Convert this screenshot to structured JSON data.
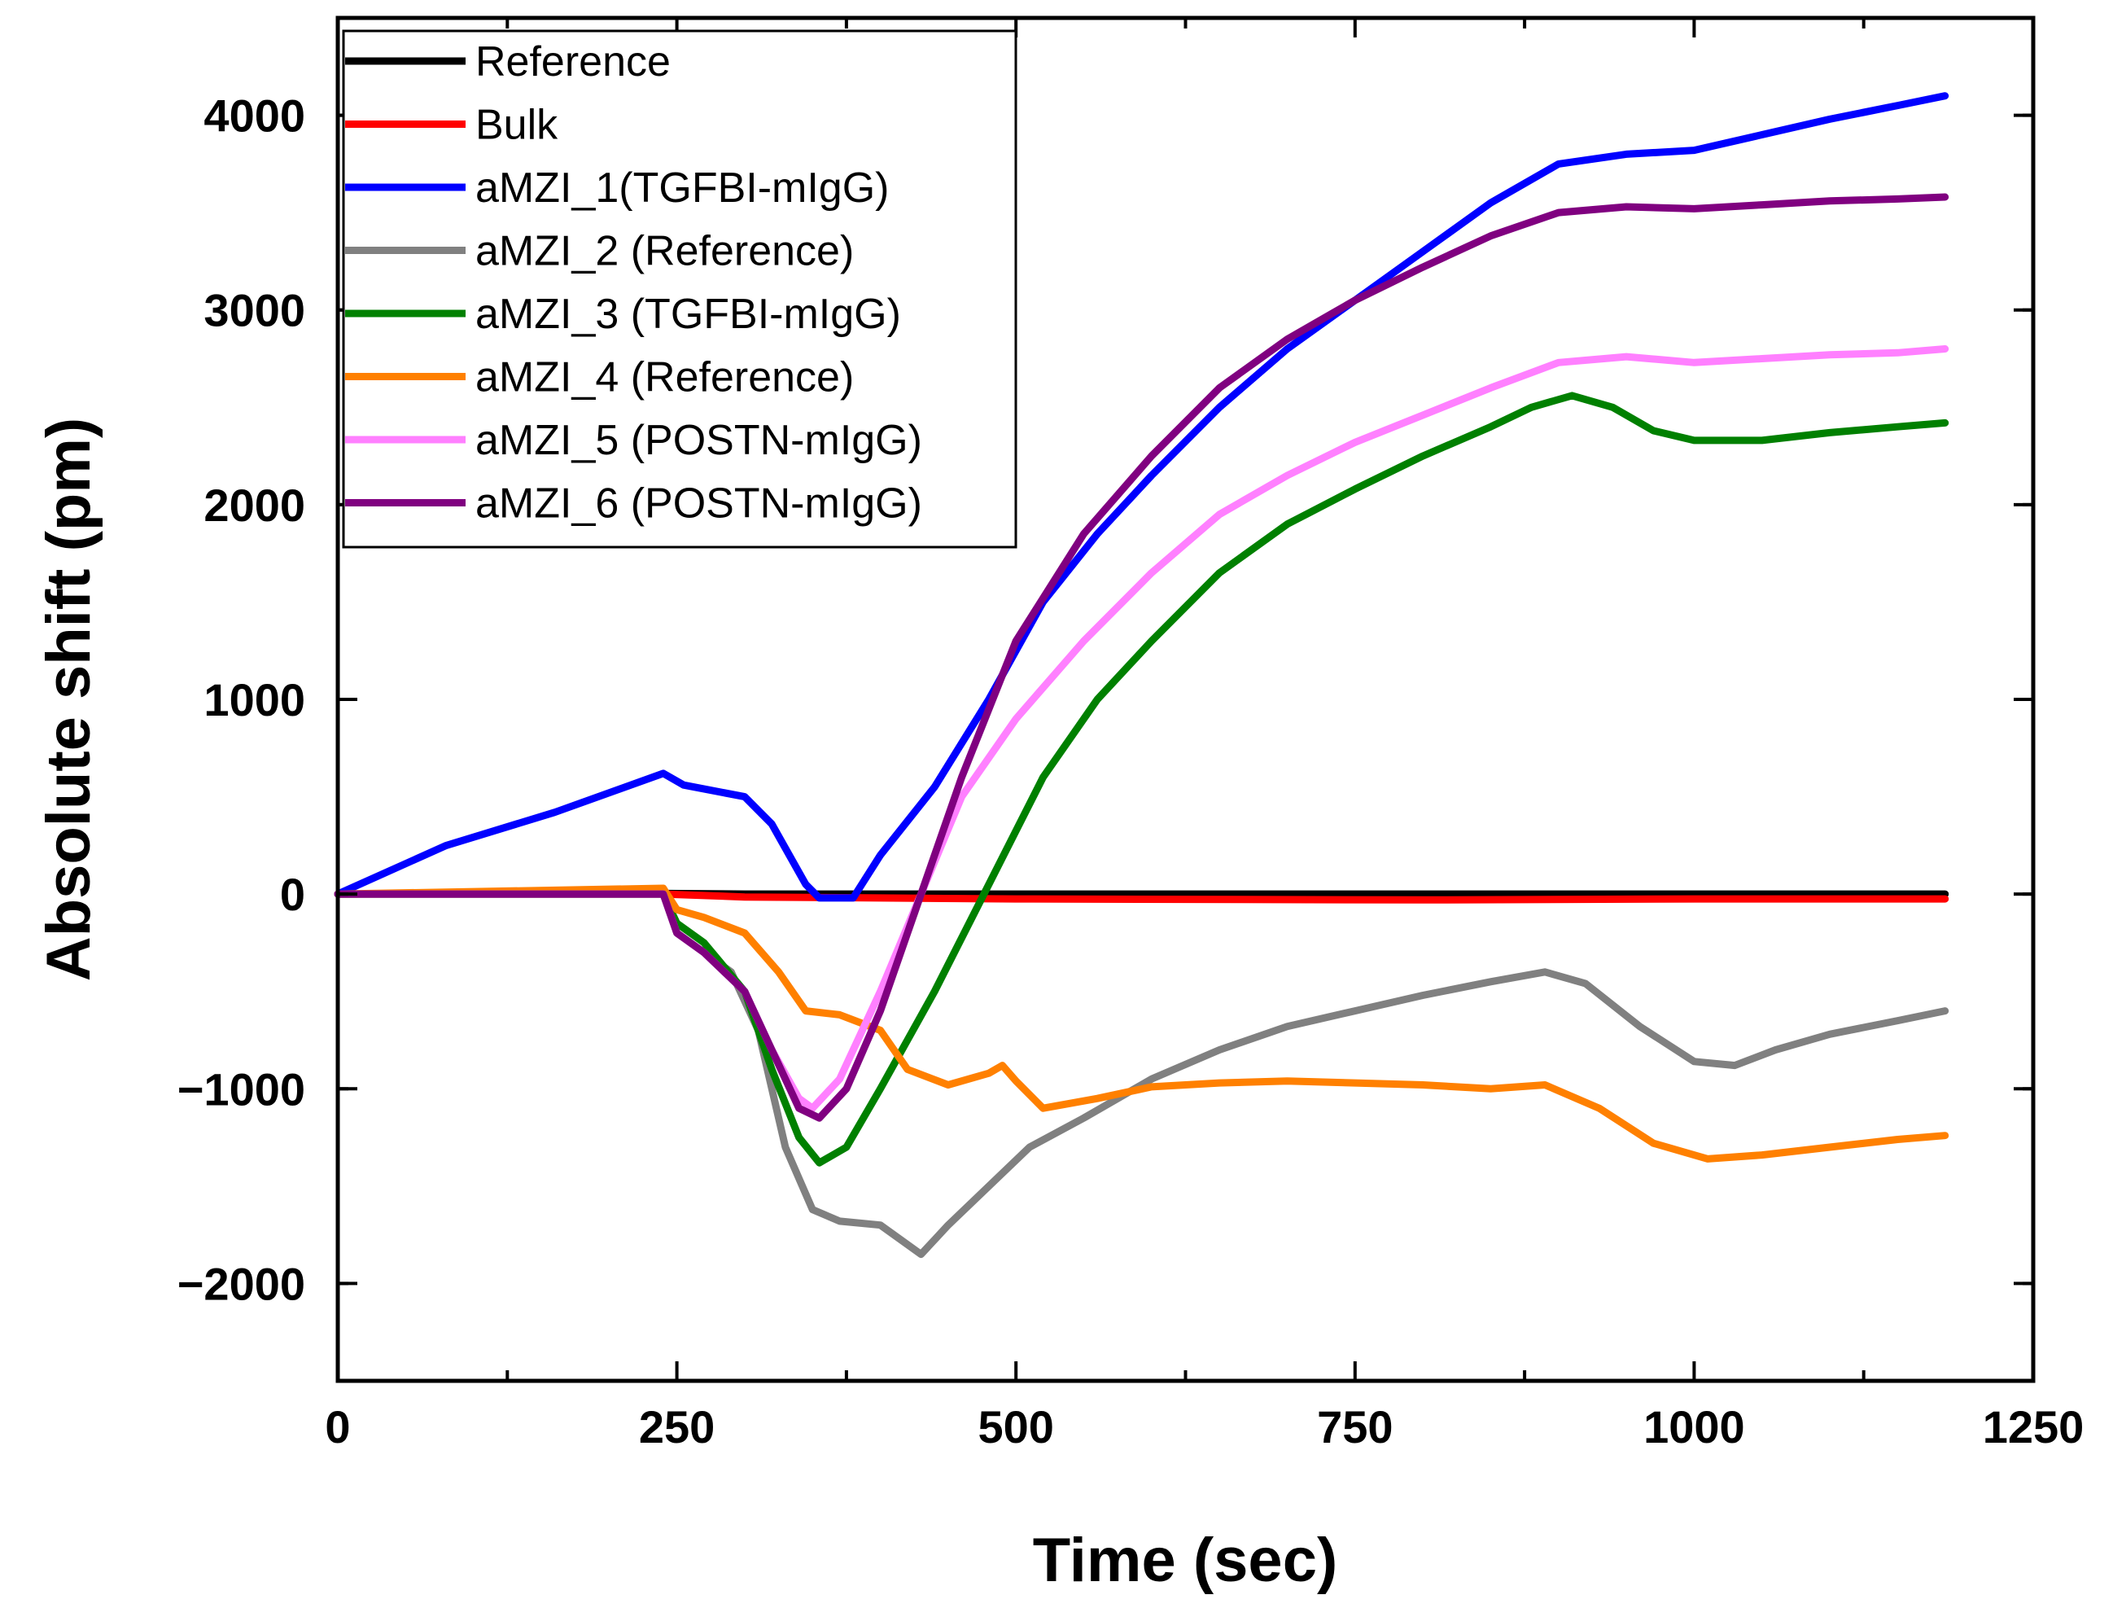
{
  "chart_data": {
    "type": "line",
    "title": "",
    "xlabel": "Time (sec)",
    "ylabel": "Absolute shift (pm)",
    "xlim": [
      0,
      1250
    ],
    "ylim": [
      -2500,
      4500
    ],
    "xticks": [
      0,
      250,
      500,
      750,
      1000,
      1250
    ],
    "yticks": [
      -2000,
      -1000,
      0,
      1000,
      2000,
      3000,
      4000
    ],
    "x_tick_labels": [
      "0",
      "250",
      "500",
      "750",
      "1000",
      "1250"
    ],
    "y_tick_labels": [
      "−2000",
      "−1000",
      "0",
      "1000",
      "2000",
      "3000",
      "4000"
    ],
    "grid": false,
    "legend_position": "top-left",
    "series": [
      {
        "name": "Reference",
        "color": "#000000",
        "points": [
          [
            0,
            0
          ],
          [
            200,
            5
          ],
          [
            300,
            0
          ],
          [
            500,
            0
          ],
          [
            750,
            0
          ],
          [
            1000,
            0
          ],
          [
            1185,
            0
          ]
        ]
      },
      {
        "name": "Bulk",
        "color": "#ff0000",
        "points": [
          [
            0,
            0
          ],
          [
            240,
            0
          ],
          [
            300,
            -15
          ],
          [
            500,
            -25
          ],
          [
            800,
            -30
          ],
          [
            1000,
            -25
          ],
          [
            1185,
            -25
          ]
        ]
      },
      {
        "name": "aMZI_1(TGFBI-mIgG)",
        "color": "#0000ff",
        "points": [
          [
            0,
            0
          ],
          [
            80,
            250
          ],
          [
            160,
            420
          ],
          [
            240,
            620
          ],
          [
            255,
            560
          ],
          [
            300,
            500
          ],
          [
            320,
            360
          ],
          [
            345,
            50
          ],
          [
            355,
            -20
          ],
          [
            380,
            -20
          ],
          [
            400,
            200
          ],
          [
            440,
            550
          ],
          [
            480,
            1000
          ],
          [
            520,
            1500
          ],
          [
            560,
            1850
          ],
          [
            600,
            2150
          ],
          [
            650,
            2500
          ],
          [
            700,
            2800
          ],
          [
            750,
            3050
          ],
          [
            800,
            3300
          ],
          [
            850,
            3550
          ],
          [
            900,
            3750
          ],
          [
            950,
            3800
          ],
          [
            1000,
            3820
          ],
          [
            1050,
            3900
          ],
          [
            1100,
            3980
          ],
          [
            1150,
            4050
          ],
          [
            1185,
            4100
          ]
        ]
      },
      {
        "name": "aMZI_2 (Reference)",
        "color": "#808080",
        "points": [
          [
            0,
            0
          ],
          [
            240,
            0
          ],
          [
            250,
            -200
          ],
          [
            270,
            -300
          ],
          [
            290,
            -400
          ],
          [
            310,
            -700
          ],
          [
            330,
            -1300
          ],
          [
            350,
            -1620
          ],
          [
            370,
            -1680
          ],
          [
            400,
            -1700
          ],
          [
            430,
            -1850
          ],
          [
            450,
            -1700
          ],
          [
            480,
            -1500
          ],
          [
            510,
            -1300
          ],
          [
            550,
            -1150
          ],
          [
            600,
            -950
          ],
          [
            650,
            -800
          ],
          [
            700,
            -680
          ],
          [
            750,
            -600
          ],
          [
            800,
            -520
          ],
          [
            850,
            -450
          ],
          [
            890,
            -400
          ],
          [
            920,
            -460
          ],
          [
            960,
            -680
          ],
          [
            1000,
            -860
          ],
          [
            1030,
            -880
          ],
          [
            1060,
            -800
          ],
          [
            1100,
            -720
          ],
          [
            1150,
            -650
          ],
          [
            1185,
            -600
          ]
        ]
      },
      {
        "name": "aMZI_3 (TGFBI-mIgG)",
        "color": "#008000",
        "points": [
          [
            0,
            0
          ],
          [
            240,
            0
          ],
          [
            250,
            -150
          ],
          [
            270,
            -250
          ],
          [
            300,
            -500
          ],
          [
            320,
            -900
          ],
          [
            340,
            -1250
          ],
          [
            355,
            -1380
          ],
          [
            375,
            -1300
          ],
          [
            400,
            -1000
          ],
          [
            440,
            -500
          ],
          [
            480,
            50
          ],
          [
            520,
            600
          ],
          [
            560,
            1000
          ],
          [
            600,
            1300
          ],
          [
            650,
            1650
          ],
          [
            700,
            1900
          ],
          [
            750,
            2080
          ],
          [
            800,
            2250
          ],
          [
            850,
            2400
          ],
          [
            880,
            2500
          ],
          [
            910,
            2560
          ],
          [
            940,
            2500
          ],
          [
            970,
            2380
          ],
          [
            1000,
            2330
          ],
          [
            1050,
            2330
          ],
          [
            1100,
            2370
          ],
          [
            1150,
            2400
          ],
          [
            1185,
            2420
          ]
        ]
      },
      {
        "name": "aMZI_4 (Reference)",
        "color": "#ff8000",
        "points": [
          [
            0,
            0
          ],
          [
            240,
            30
          ],
          [
            250,
            -80
          ],
          [
            270,
            -120
          ],
          [
            300,
            -200
          ],
          [
            325,
            -400
          ],
          [
            345,
            -600
          ],
          [
            370,
            -620
          ],
          [
            400,
            -700
          ],
          [
            420,
            -900
          ],
          [
            450,
            -980
          ],
          [
            480,
            -920
          ],
          [
            490,
            -880
          ],
          [
            500,
            -960
          ],
          [
            520,
            -1100
          ],
          [
            560,
            -1050
          ],
          [
            600,
            -990
          ],
          [
            650,
            -970
          ],
          [
            700,
            -960
          ],
          [
            750,
            -970
          ],
          [
            800,
            -980
          ],
          [
            850,
            -1000
          ],
          [
            890,
            -980
          ],
          [
            930,
            -1100
          ],
          [
            970,
            -1280
          ],
          [
            1010,
            -1360
          ],
          [
            1050,
            -1340
          ],
          [
            1100,
            -1300
          ],
          [
            1150,
            -1260
          ],
          [
            1185,
            -1240
          ]
        ]
      },
      {
        "name": "aMZI_5 (POSTN-mIgG)",
        "color": "#ff80ff",
        "points": [
          [
            0,
            0
          ],
          [
            240,
            0
          ],
          [
            250,
            -200
          ],
          [
            270,
            -300
          ],
          [
            300,
            -500
          ],
          [
            320,
            -800
          ],
          [
            340,
            -1050
          ],
          [
            350,
            -1100
          ],
          [
            370,
            -950
          ],
          [
            400,
            -500
          ],
          [
            430,
            0
          ],
          [
            460,
            500
          ],
          [
            500,
            900
          ],
          [
            550,
            1300
          ],
          [
            600,
            1650
          ],
          [
            650,
            1950
          ],
          [
            700,
            2150
          ],
          [
            750,
            2320
          ],
          [
            800,
            2460
          ],
          [
            850,
            2600
          ],
          [
            900,
            2730
          ],
          [
            950,
            2760
          ],
          [
            1000,
            2730
          ],
          [
            1050,
            2750
          ],
          [
            1100,
            2770
          ],
          [
            1150,
            2780
          ],
          [
            1185,
            2800
          ]
        ]
      },
      {
        "name": "aMZI_6 (POSTN-mIgG)",
        "color": "#800080",
        "points": [
          [
            0,
            0
          ],
          [
            240,
            0
          ],
          [
            250,
            -200
          ],
          [
            270,
            -300
          ],
          [
            300,
            -500
          ],
          [
            320,
            -800
          ],
          [
            340,
            -1100
          ],
          [
            355,
            -1150
          ],
          [
            375,
            -1000
          ],
          [
            400,
            -600
          ],
          [
            430,
            0
          ],
          [
            460,
            600
          ],
          [
            500,
            1300
          ],
          [
            550,
            1850
          ],
          [
            600,
            2250
          ],
          [
            650,
            2600
          ],
          [
            700,
            2850
          ],
          [
            750,
            3050
          ],
          [
            800,
            3220
          ],
          [
            850,
            3380
          ],
          [
            900,
            3500
          ],
          [
            950,
            3530
          ],
          [
            1000,
            3520
          ],
          [
            1050,
            3540
          ],
          [
            1100,
            3560
          ],
          [
            1150,
            3570
          ],
          [
            1185,
            3580
          ]
        ]
      }
    ]
  }
}
